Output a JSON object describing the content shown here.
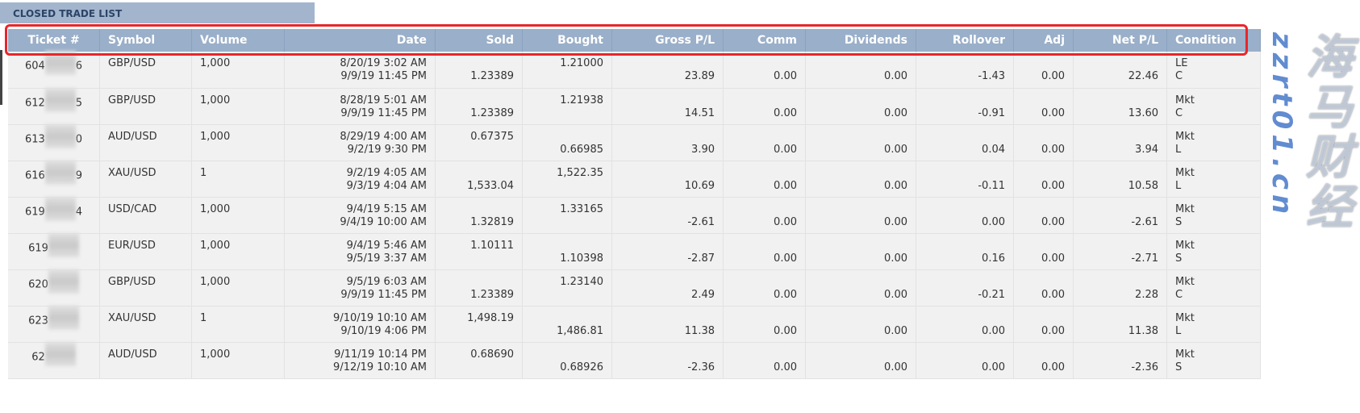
{
  "title": "CLOSED TRADE LIST",
  "columns": [
    "Ticket #",
    "Symbol",
    "Volume",
    "Date",
    "Sold",
    "Bought",
    "Gross P/L",
    "Comm",
    "Dividends",
    "Rollover",
    "Adj",
    "Net P/L",
    "Condition"
  ],
  "rows": [
    {
      "ticket_prefix": "604",
      "ticket_suffix": "6",
      "symbol": "GBP/USD",
      "volume": "1,000",
      "date": [
        "8/20/19 3:02 AM",
        "9/9/19 11:45 PM"
      ],
      "sold": [
        "",
        "1.23389"
      ],
      "bought": [
        "1.21000",
        ""
      ],
      "gross": "23.89",
      "comm": "0.00",
      "dividends": "0.00",
      "rollover": "-1.43",
      "adj": "0.00",
      "net": "22.46",
      "condition": [
        "LE",
        "C"
      ]
    },
    {
      "ticket_prefix": "612",
      "ticket_suffix": "5",
      "symbol": "GBP/USD",
      "volume": "1,000",
      "date": [
        "8/28/19 5:01 AM",
        "9/9/19 11:45 PM"
      ],
      "sold": [
        "",
        "1.23389"
      ],
      "bought": [
        "1.21938",
        ""
      ],
      "gross": "14.51",
      "comm": "0.00",
      "dividends": "0.00",
      "rollover": "-0.91",
      "adj": "0.00",
      "net": "13.60",
      "condition": [
        "Mkt",
        "C"
      ]
    },
    {
      "ticket_prefix": "613",
      "ticket_suffix": "0",
      "symbol": "AUD/USD",
      "volume": "1,000",
      "date": [
        "8/29/19 4:00 AM",
        "9/2/19 9:30 PM"
      ],
      "sold": [
        "0.67375",
        ""
      ],
      "bought": [
        "",
        "0.66985"
      ],
      "gross": "3.90",
      "comm": "0.00",
      "dividends": "0.00",
      "rollover": "0.04",
      "adj": "0.00",
      "net": "3.94",
      "condition": [
        "Mkt",
        "L"
      ]
    },
    {
      "ticket_prefix": "616",
      "ticket_suffix": "9",
      "symbol": "XAU/USD",
      "volume": "1",
      "date": [
        "9/2/19 4:05 AM",
        "9/3/19 4:04 AM"
      ],
      "sold": [
        "",
        "1,533.04"
      ],
      "bought": [
        "1,522.35",
        ""
      ],
      "gross": "10.69",
      "comm": "0.00",
      "dividends": "0.00",
      "rollover": "-0.11",
      "adj": "0.00",
      "net": "10.58",
      "condition": [
        "Mkt",
        "L"
      ]
    },
    {
      "ticket_prefix": "619",
      "ticket_suffix": "4",
      "symbol": "USD/CAD",
      "volume": "1,000",
      "date": [
        "9/4/19 5:15 AM",
        "9/4/19 10:00 AM"
      ],
      "sold": [
        "",
        "1.32819"
      ],
      "bought": [
        "1.33165",
        ""
      ],
      "gross": "-2.61",
      "comm": "0.00",
      "dividends": "0.00",
      "rollover": "0.00",
      "adj": "0.00",
      "net": "-2.61",
      "condition": [
        "Mkt",
        "S"
      ]
    },
    {
      "ticket_prefix": "619",
      "ticket_suffix": "",
      "symbol": "EUR/USD",
      "volume": "1,000",
      "date": [
        "9/4/19 5:46 AM",
        "9/5/19 3:37 AM"
      ],
      "sold": [
        "1.10111",
        ""
      ],
      "bought": [
        "",
        "1.10398"
      ],
      "gross": "-2.87",
      "comm": "0.00",
      "dividends": "0.00",
      "rollover": "0.16",
      "adj": "0.00",
      "net": "-2.71",
      "condition": [
        "Mkt",
        "S"
      ]
    },
    {
      "ticket_prefix": "620",
      "ticket_suffix": "",
      "symbol": "GBP/USD",
      "volume": "1,000",
      "date": [
        "9/5/19 6:03 AM",
        "9/9/19 11:45 PM"
      ],
      "sold": [
        "",
        "1.23389"
      ],
      "bought": [
        "1.23140",
        ""
      ],
      "gross": "2.49",
      "comm": "0.00",
      "dividends": "0.00",
      "rollover": "-0.21",
      "adj": "0.00",
      "net": "2.28",
      "condition": [
        "Mkt",
        "C"
      ]
    },
    {
      "ticket_prefix": "623",
      "ticket_suffix": "",
      "symbol": "XAU/USD",
      "volume": "1",
      "date": [
        "9/10/19 10:10 AM",
        "9/10/19 4:06 PM"
      ],
      "sold": [
        "1,498.19",
        ""
      ],
      "bought": [
        "",
        "1,486.81"
      ],
      "gross": "11.38",
      "comm": "0.00",
      "dividends": "0.00",
      "rollover": "0.00",
      "adj": "0.00",
      "net": "11.38",
      "condition": [
        "Mkt",
        "L"
      ]
    },
    {
      "ticket_prefix": "62",
      "ticket_suffix": "",
      "symbol": "AUD/USD",
      "volume": "1,000",
      "date": [
        "9/11/19 10:14 PM",
        "9/12/19 10:10 AM"
      ],
      "sold": [
        "0.68690",
        ""
      ],
      "bought": [
        "",
        "0.68926"
      ],
      "gross": "-2.36",
      "comm": "0.00",
      "dividends": "0.00",
      "rollover": "0.00",
      "adj": "0.00",
      "net": "-2.36",
      "condition": [
        "Mkt",
        "S"
      ]
    }
  ],
  "watermark": {
    "text": "海马财经",
    "url": "zzrt01.cn"
  },
  "colors": {
    "header_bg": "#9aafc9",
    "title_bg": "#a2b5cd",
    "title_text": "#2c4466",
    "row_bg": "#f1f1f1",
    "highlight": "#e8262a",
    "watermark_url": "#4678c8"
  }
}
